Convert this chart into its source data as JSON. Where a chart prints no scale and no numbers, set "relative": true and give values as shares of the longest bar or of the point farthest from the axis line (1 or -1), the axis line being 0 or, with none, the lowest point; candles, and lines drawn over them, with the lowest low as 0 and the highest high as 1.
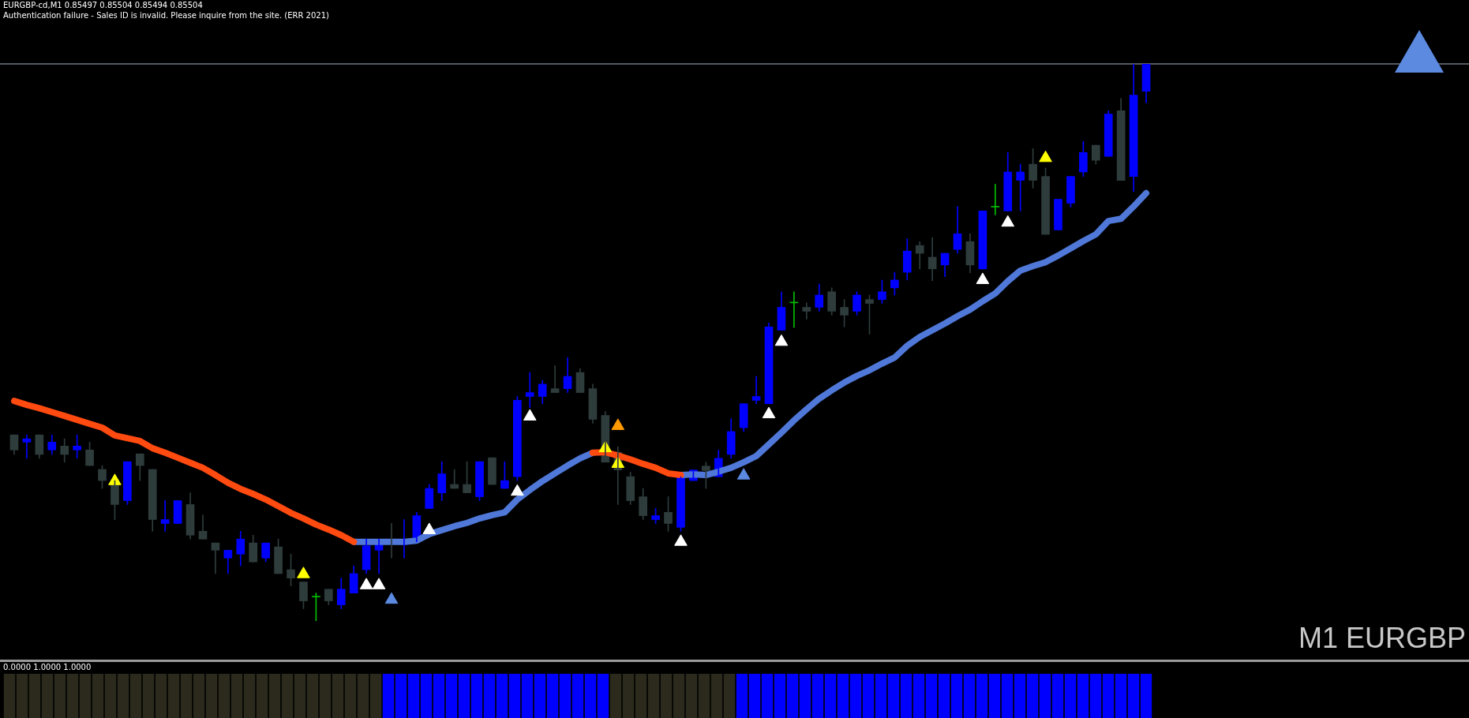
{
  "chart_data": [
    {
      "type": "candlestick",
      "title": "EURGBP-cd,M1  0.85497 0.85504 0.85494 0.85504",
      "subtitle": "Authentication failure - Sales ID is invalid. Please inquire from the site. (ERR 2021)",
      "annotations": [
        "M1 EURGBP"
      ],
      "relative": true,
      "categories": [
        null,
        null,
        null,
        null,
        null,
        null,
        null,
        null,
        null,
        null,
        null,
        null,
        null,
        null,
        null,
        null,
        null,
        null,
        null,
        null,
        null,
        null,
        null,
        null,
        null,
        null,
        null,
        null,
        null,
        null,
        null,
        null,
        null,
        null,
        null,
        null,
        null,
        null,
        null,
        null,
        null,
        null,
        null,
        null,
        null,
        null,
        null,
        null,
        null,
        null,
        null,
        null,
        null,
        null,
        null,
        null,
        null,
        null,
        null,
        null,
        null,
        null,
        null,
        null,
        null,
        null,
        null,
        null,
        null,
        null,
        null,
        null,
        null,
        null,
        null,
        null,
        null,
        null,
        null,
        null,
        null,
        null,
        null,
        null,
        null,
        null,
        null,
        null,
        null,
        null,
        null
      ],
      "ohlc": [
        [
          0.334,
          0.334,
          0.299,
          0.307
        ],
        [
          0.321,
          0.334,
          0.292,
          0.327
        ],
        [
          0.334,
          0.334,
          0.292,
          0.299
        ],
        [
          0.307,
          0.334,
          0.299,
          0.321
        ],
        [
          0.314,
          0.327,
          0.285,
          0.299
        ],
        [
          0.307,
          0.334,
          0.292,
          0.314
        ],
        [
          0.307,
          0.321,
          0.279,
          0.279
        ],
        [
          0.272,
          0.279,
          0.238,
          0.252
        ],
        [
          0.245,
          0.252,
          0.182,
          0.209
        ],
        [
          0.216,
          0.286,
          0.209,
          0.286
        ],
        [
          0.3,
          0.3,
          0.252,
          0.279
        ],
        [
          0.272,
          0.272,
          0.161,
          0.182
        ],
        [
          0.175,
          0.216,
          0.161,
          0.182
        ],
        [
          0.175,
          0.216,
          0.175,
          0.216
        ],
        [
          0.209,
          0.23,
          0.147,
          0.154
        ],
        [
          0.161,
          0.19,
          0.147,
          0.147
        ],
        [
          0.14,
          0.14,
          0.085,
          0.127
        ],
        [
          0.113,
          0.127,
          0.085,
          0.127
        ],
        [
          0.12,
          0.161,
          0.099,
          0.147
        ],
        [
          0.14,
          0.154,
          0.106,
          0.106
        ],
        [
          0.113,
          0.14,
          0.106,
          0.14
        ],
        [
          0.133,
          0.147,
          0.085,
          0.085
        ],
        [
          0.092,
          0.12,
          0.063,
          0.077
        ],
        [
          0.07,
          0.07,
          0.022,
          0.036
        ],
        [
          0.043,
          0.05,
          0,
          0.043
        ],
        [
          0.057,
          0.057,
          0.029,
          0.036
        ],
        [
          0.029,
          0.077,
          0.022,
          0.057
        ],
        [
          0.05,
          0.099,
          0.05,
          0.085
        ],
        [
          0.092,
          0.147,
          0.085,
          0.135
        ],
        [
          0.127,
          0.147,
          0.085,
          0.14
        ],
        [
          0.144,
          0.175,
          0.113,
          0.14
        ],
        [
          0.137,
          0.182,
          0.113,
          0.144
        ],
        [
          0.142,
          0.195,
          0.142,
          0.189
        ],
        [
          0.202,
          0.245,
          0.202,
          0.238
        ],
        [
          0.23,
          0.286,
          0.216,
          0.264
        ],
        [
          0.245,
          0.272,
          0.238,
          0.238
        ],
        [
          0.245,
          0.286,
          0.23,
          0.23
        ],
        [
          0.223,
          0.286,
          0.216,
          0.286
        ],
        [
          0.293,
          0.293,
          0.245,
          0.245
        ],
        [
          0.238,
          0.286,
          0.238,
          0.252
        ],
        [
          0.259,
          0.403,
          0.252,
          0.396
        ],
        [
          0.403,
          0.446,
          0.383,
          0.41
        ],
        [
          0.403,
          0.432,
          0.39,
          0.425
        ],
        [
          0.417,
          0.458,
          0.41,
          0.41
        ],
        [
          0.417,
          0.473,
          0.41,
          0.439
        ],
        [
          0.446,
          0.453,
          0.41,
          0.41
        ],
        [
          0.417,
          0.425,
          0.355,
          0.362
        ],
        [
          0.369,
          0.376,
          0.285,
          0.285
        ],
        [
          0.303,
          0.313,
          0.209,
          0.271
        ],
        [
          0.259,
          0.267,
          0.209,
          0.216
        ],
        [
          0.223,
          0.238,
          0.182,
          0.189
        ],
        [
          0.182,
          0.202,
          0.175,
          0.189
        ],
        [
          0.195,
          0.223,
          0.161,
          0.175
        ],
        [
          0.168,
          0.259,
          0.161,
          0.259
        ],
        [
          0.252,
          0.271,
          0.252,
          0.271
        ],
        [
          0.278,
          0.285,
          0.238,
          0.27
        ],
        [
          0.259,
          0.307,
          0.259,
          0.292
        ],
        [
          0.299,
          0.363,
          0.292,
          0.34
        ],
        [
          0.347,
          0.39,
          0.34,
          0.39
        ],
        [
          0.396,
          0.439,
          0.39,
          0.403
        ],
        [
          0.39,
          0.535,
          0.39,
          0.528
        ],
        [
          0.522,
          0.591,
          0.522,
          0.563
        ],
        [
          0.571,
          0.591,
          0.527,
          0.571
        ],
        [
          0.563,
          0.571,
          0.542,
          0.556
        ],
        [
          0.563,
          0.605,
          0.556,
          0.585
        ],
        [
          0.591,
          0.598,
          0.549,
          0.556
        ],
        [
          0.563,
          0.577,
          0.528,
          0.549
        ],
        [
          0.556,
          0.591,
          0.549,
          0.585
        ],
        [
          0.577,
          0.585,
          0.515,
          0.57
        ],
        [
          0.577,
          0.612,
          0.57,
          0.591
        ],
        [
          0.598,
          0.626,
          0.585,
          0.612
        ],
        [
          0.626,
          0.686,
          0.612,
          0.664
        ],
        [
          0.674,
          0.681,
          0.632,
          0.66
        ],
        [
          0.653,
          0.688,
          0.611,
          0.632
        ],
        [
          0.639,
          0.66,
          0.618,
          0.66
        ],
        [
          0.667,
          0.744,
          0.66,
          0.695
        ],
        [
          0.681,
          0.695,
          0.625,
          0.639
        ],
        [
          0.632,
          0.736,
          0.632,
          0.736
        ],
        [
          0.743,
          0.784,
          0.729,
          0.743
        ],
        [
          0.736,
          0.841,
          0.736,
          0.806
        ],
        [
          0.791,
          0.82,
          0.736,
          0.806
        ],
        [
          0.82,
          0.848,
          0.777,
          0.791
        ],
        [
          0.798,
          0.813,
          0.694,
          0.694
        ],
        [
          0.702,
          0.757,
          0.702,
          0.757
        ],
        [
          0.75,
          0.798,
          0.743,
          0.798
        ],
        [
          0.806,
          0.861,
          0.798,
          0.841
        ],
        [
          0.854,
          0.854,
          0.82,
          0.827
        ],
        [
          0.834,
          0.916,
          0.834,
          0.91
        ],
        [
          0.916,
          0.938,
          0.791,
          0.791
        ],
        [
          0.798,
          1,
          0.771,
          0.944
        ],
        [
          0.951,
          1,
          0.93,
          1
        ]
      ],
      "colors": [
        "#2f3c3c",
        "#0000ff",
        "#2f3c3c",
        "#0000ff",
        "#2f3c3c",
        "#0000ff",
        "#2f3c3c",
        "#2f3c3c",
        "#2f3c3c",
        "#0000ff",
        "#2f3c3c",
        "#2f3c3c",
        "#0000ff",
        "#0000ff",
        "#2f3c3c",
        "#2f3c3c",
        "#2f3c3c",
        "#0000ff",
        "#0000ff",
        "#2f3c3c",
        "#0000ff",
        "#2f3c3c",
        "#2f3c3c",
        "#2f3c3c",
        "#00c000",
        "#2f3c3c",
        "#0000ff",
        "#0000ff",
        "#0000ff",
        "#0000ff",
        "#2f3c3c",
        "#0000ff",
        "#0000ff",
        "#0000ff",
        "#0000ff",
        "#2f3c3c",
        "#2f3c3c",
        "#0000ff",
        "#2f3c3c",
        "#0000ff",
        "#0000ff",
        "#0000ff",
        "#0000ff",
        "#2f3c3c",
        "#0000ff",
        "#2f3c3c",
        "#2f3c3c",
        "#2f3c3c",
        "#2f3c3c",
        "#2f3c3c",
        "#2f3c3c",
        "#0000ff",
        "#2f3c3c",
        "#0000ff",
        "#0000ff",
        "#2f3c3c",
        "#0000ff",
        "#0000ff",
        "#0000ff",
        "#0000ff",
        "#0000ff",
        "#0000ff",
        "#00c000",
        "#2f3c3c",
        "#0000ff",
        "#2f3c3c",
        "#2f3c3c",
        "#0000ff",
        "#2f3c3c",
        "#0000ff",
        "#0000ff",
        "#0000ff",
        "#2f3c3c",
        "#2f3c3c",
        "#0000ff",
        "#0000ff",
        "#2f3c3c",
        "#0000ff",
        "#00c000",
        "#0000ff",
        "#0000ff",
        "#2f3c3c",
        "#2f3c3c",
        "#0000ff",
        "#0000ff",
        "#0000ff",
        "#2f3c3c",
        "#0000ff",
        "#2f3c3c",
        "#0000ff",
        "#0000ff"
      ],
      "ref_lines": [
        {
          "axis": "y",
          "value": 1,
          "color": "#a8b0c0"
        }
      ],
      "series": [
        {
          "type": "line",
          "color": "#ff4a10",
          "values": [
            0.395,
            0.388,
            0.382,
            0.375,
            0.368,
            0.361,
            0.354,
            0.347,
            0.333,
            0.328,
            0.323,
            0.31,
            0.302,
            0.293,
            0.284,
            0.275,
            0.262,
            0.248,
            0.237,
            0.228,
            0.218,
            0.206,
            0.194,
            0.184,
            0.173,
            0.164,
            0.154,
            0.142,
            null,
            null,
            null,
            null,
            null,
            null,
            null,
            null,
            null,
            null,
            null,
            null,
            null,
            null,
            null,
            null,
            null,
            null,
            0.302,
            0.303,
            0.297,
            0.29,
            0.282,
            0.275,
            0.265,
            0.262,
            null,
            null,
            null,
            null,
            null,
            null,
            null,
            null,
            null,
            null,
            null,
            null,
            null,
            null,
            null,
            null,
            null,
            null,
            null,
            null,
            null,
            null,
            null,
            null,
            null,
            null,
            null,
            null,
            null,
            null,
            null,
            null,
            null,
            null,
            null,
            null,
            null
          ]
        },
        {
          "type": "line",
          "color": "#4f78d8",
          "values": [
            null,
            null,
            null,
            null,
            null,
            null,
            null,
            null,
            null,
            null,
            null,
            null,
            null,
            null,
            null,
            null,
            null,
            null,
            null,
            null,
            null,
            null,
            null,
            null,
            null,
            null,
            null,
            0.142,
            0.142,
            0.142,
            0.142,
            0.142,
            0.144,
            0.156,
            0.163,
            0.17,
            0.176,
            0.184,
            0.19,
            0.195,
            0.218,
            0.235,
            0.251,
            0.265,
            0.279,
            0.292,
            0.302,
            null,
            null,
            null,
            null,
            null,
            null,
            0.262,
            0.263,
            0.262,
            0.268,
            0.275,
            0.285,
            0.296,
            0.317,
            0.338,
            0.36,
            0.38,
            0.399,
            0.414,
            0.428,
            0.44,
            0.45,
            0.462,
            0.473,
            0.494,
            0.51,
            0.522,
            0.534,
            0.547,
            0.559,
            0.574,
            0.588,
            0.61,
            0.629,
            0.637,
            0.644,
            0.656,
            0.669,
            0.682,
            0.694,
            0.718,
            0.722,
            0.744,
            0.768
          ]
        },
        {
          "type": "scatter",
          "marker": "triangle",
          "color": "#ffffff",
          "values": [
            null,
            null,
            null,
            null,
            null,
            null,
            null,
            null,
            null,
            null,
            null,
            null,
            null,
            null,
            null,
            null,
            null,
            null,
            null,
            null,
            null,
            null,
            null,
            null,
            null,
            null,
            null,
            null,
            0.064,
            0.064,
            null,
            null,
            null,
            0.163,
            null,
            null,
            null,
            null,
            null,
            null,
            0.232,
            0.367,
            null,
            null,
            null,
            null,
            null,
            null,
            null,
            null,
            null,
            null,
            null,
            0.142,
            null,
            null,
            null,
            null,
            null,
            null,
            0.371,
            0.501,
            null,
            null,
            null,
            null,
            null,
            null,
            null,
            null,
            null,
            null,
            null,
            null,
            null,
            null,
            null,
            0.612,
            null,
            0.715,
            null,
            null,
            null,
            null,
            null,
            null,
            null,
            null,
            null,
            null,
            null
          ]
        },
        {
          "type": "scatter",
          "marker": "triangle",
          "color": "#ffff00",
          "values": [
            null,
            null,
            null,
            null,
            null,
            null,
            null,
            null,
            0.251,
            null,
            null,
            null,
            null,
            null,
            null,
            null,
            null,
            null,
            null,
            null,
            null,
            null,
            null,
            0.084,
            null,
            null,
            null,
            null,
            null,
            null,
            null,
            null,
            null,
            null,
            null,
            null,
            null,
            null,
            null,
            null,
            null,
            null,
            null,
            null,
            null,
            null,
            null,
            0.31,
            0.282,
            null,
            null,
            null,
            null,
            null,
            null,
            null,
            null,
            null,
            null,
            null,
            null,
            null,
            null,
            null,
            null,
            null,
            null,
            null,
            null,
            null,
            null,
            null,
            null,
            null,
            null,
            null,
            null,
            null,
            null,
            null,
            null,
            null,
            0.831,
            null,
            null,
            null,
            null,
            null,
            null,
            null,
            null
          ]
        },
        {
          "type": "scatter",
          "marker": "triangle",
          "color": "#5b8ae0",
          "values": [
            null,
            null,
            null,
            null,
            null,
            null,
            null,
            null,
            null,
            null,
            null,
            null,
            null,
            null,
            null,
            null,
            null,
            null,
            null,
            null,
            null,
            null,
            null,
            null,
            null,
            null,
            null,
            null,
            null,
            null,
            0.038,
            null,
            null,
            null,
            null,
            null,
            null,
            null,
            null,
            null,
            null,
            null,
            null,
            null,
            null,
            null,
            null,
            null,
            null,
            null,
            null,
            null,
            null,
            null,
            null,
            null,
            null,
            null,
            0.261,
            null,
            null,
            null,
            null,
            null,
            null,
            null,
            null,
            null,
            null,
            null,
            null,
            null,
            null,
            null,
            null,
            null,
            null,
            null,
            null,
            null,
            null,
            null,
            null,
            null,
            null,
            null,
            null,
            null,
            null,
            null,
            null
          ]
        },
        {
          "type": "scatter",
          "marker": "triangle",
          "color": "#ff9a00",
          "values": [
            null,
            null,
            null,
            null,
            null,
            null,
            null,
            null,
            null,
            null,
            null,
            null,
            null,
            null,
            null,
            null,
            null,
            null,
            null,
            null,
            null,
            null,
            null,
            null,
            null,
            null,
            null,
            null,
            null,
            null,
            null,
            null,
            null,
            null,
            null,
            null,
            null,
            null,
            null,
            null,
            null,
            null,
            null,
            null,
            null,
            null,
            null,
            null,
            0.35,
            null,
            null,
            null,
            null,
            null,
            null,
            null,
            null,
            null,
            null,
            null,
            null,
            null,
            null,
            null,
            null,
            null,
            null,
            null,
            null,
            null,
            null,
            null,
            null,
            null,
            null,
            null,
            null,
            null,
            null,
            null,
            null,
            null,
            null,
            null,
            null,
            null,
            null,
            null,
            null,
            null,
            null
          ]
        }
      ]
    },
    {
      "type": "bar",
      "title": "0.0000 1.0000 1.0000",
      "relative": true,
      "categories": [
        null,
        null,
        null,
        null,
        null,
        null,
        null,
        null,
        null,
        null,
        null,
        null,
        null,
        null,
        null,
        null,
        null,
        null,
        null,
        null,
        null,
        null,
        null,
        null,
        null,
        null,
        null,
        null,
        null,
        null,
        null,
        null,
        null,
        null,
        null,
        null,
        null,
        null,
        null,
        null,
        null,
        null,
        null,
        null,
        null,
        null,
        null,
        null,
        null,
        null,
        null,
        null,
        null,
        null,
        null,
        null,
        null,
        null,
        null,
        null,
        null,
        null,
        null,
        null,
        null,
        null,
        null,
        null,
        null,
        null,
        null,
        null,
        null,
        null,
        null,
        null,
        null,
        null,
        null,
        null,
        null,
        null,
        null,
        null,
        null,
        null,
        null,
        null,
        null,
        null,
        null
      ],
      "values": [
        1,
        1,
        1,
        1,
        1,
        1,
        1,
        1,
        1,
        1,
        1,
        1,
        1,
        1,
        1,
        1,
        1,
        1,
        1,
        1,
        1,
        1,
        1,
        1,
        1,
        1,
        1,
        1,
        1,
        1,
        1,
        1,
        1,
        1,
        1,
        1,
        1,
        1,
        1,
        1,
        1,
        1,
        1,
        1,
        1,
        1,
        1,
        1,
        1,
        1,
        1,
        1,
        1,
        1,
        1,
        1,
        1,
        1,
        1,
        1,
        1,
        1,
        1,
        1,
        1,
        1,
        1,
        1,
        1,
        1,
        1,
        1,
        1,
        1,
        1,
        1,
        1,
        1,
        1,
        1,
        1,
        1,
        1,
        1,
        1,
        1,
        1,
        1,
        1,
        1,
        1
      ],
      "colors": [
        "#2b2a1d",
        "#2b2a1d",
        "#2b2a1d",
        "#2b2a1d",
        "#2b2a1d",
        "#2b2a1d",
        "#2b2a1d",
        "#2b2a1d",
        "#2b2a1d",
        "#2b2a1d",
        "#2b2a1d",
        "#2b2a1d",
        "#2b2a1d",
        "#2b2a1d",
        "#2b2a1d",
        "#2b2a1d",
        "#2b2a1d",
        "#2b2a1d",
        "#2b2a1d",
        "#2b2a1d",
        "#2b2a1d",
        "#2b2a1d",
        "#2b2a1d",
        "#2b2a1d",
        "#2b2a1d",
        "#2b2a1d",
        "#2b2a1d",
        "#2b2a1d",
        "#2b2a1d",
        "#2b2a1d",
        "#0000ff",
        "#0000ff",
        "#0000ff",
        "#0000ff",
        "#0000ff",
        "#0000ff",
        "#0000ff",
        "#0000ff",
        "#0000ff",
        "#0000ff",
        "#0000ff",
        "#0000ff",
        "#0000ff",
        "#0000ff",
        "#0000ff",
        "#0000ff",
        "#0000ff",
        "#0000ff",
        "#2b2a1d",
        "#2b2a1d",
        "#2b2a1d",
        "#2b2a1d",
        "#2b2a1d",
        "#2b2a1d",
        "#2b2a1d",
        "#2b2a1d",
        "#2b2a1d",
        "#2b2a1d",
        "#0000ff",
        "#0000ff",
        "#0000ff",
        "#0000ff",
        "#0000ff",
        "#0000ff",
        "#0000ff",
        "#0000ff",
        "#0000ff",
        "#0000ff",
        "#0000ff",
        "#0000ff",
        "#0000ff",
        "#0000ff",
        "#0000ff",
        "#0000ff",
        "#0000ff",
        "#0000ff",
        "#0000ff",
        "#0000ff",
        "#0000ff",
        "#0000ff",
        "#0000ff",
        "#0000ff",
        "#0000ff",
        "#0000ff",
        "#0000ff",
        "#0000ff",
        "#0000ff",
        "#0000ff",
        "#0000ff",
        "#0000ff",
        "#0000ff"
      ]
    }
  ]
}
